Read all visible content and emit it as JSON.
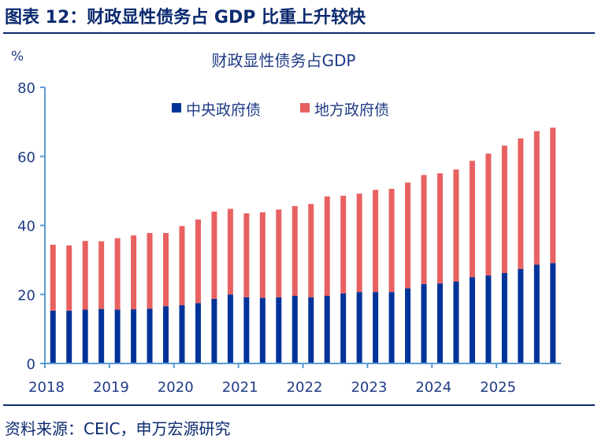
{
  "header": {
    "figure_title": "图表 12：财政显性债务占 GDP 比重上升较快"
  },
  "footer": {
    "source": "资料来源：CEIC，申万宏源研究"
  },
  "chart_data": {
    "type": "bar",
    "stacked": true,
    "title": "财政显性债务占GDP",
    "ylabel": "%",
    "xlabel": "",
    "ylim": [
      0,
      80
    ],
    "yticks": [
      0,
      20,
      40,
      60,
      80
    ],
    "xtick_labels": [
      "2018",
      "2019",
      "2020",
      "2021",
      "2022",
      "2023",
      "2024",
      "2025"
    ],
    "legend_position": "top",
    "grid": false,
    "categories": [
      "2018Q1",
      "2018Q2",
      "2018Q3",
      "2018Q4",
      "2019Q1",
      "2019Q2",
      "2019Q3",
      "2019Q4",
      "2020Q1",
      "2020Q2",
      "2020Q3",
      "2020Q4",
      "2021Q1",
      "2021Q2",
      "2021Q3",
      "2021Q4",
      "2022Q1",
      "2022Q2",
      "2022Q3",
      "2022Q4",
      "2023Q1",
      "2023Q2",
      "2023Q3",
      "2023Q4",
      "2024Q1",
      "2024Q2",
      "2024Q3",
      "2024Q4",
      "2025Q1",
      "2025Q2",
      "2025Q3",
      "2025Q4"
    ],
    "series": [
      {
        "name": "中央政府债",
        "color": "#003399",
        "values": [
          15.3,
          15.3,
          15.6,
          15.8,
          15.6,
          15.7,
          15.9,
          16.6,
          16.9,
          17.5,
          18.7,
          20.0,
          19.2,
          19.0,
          19.2,
          19.6,
          19.2,
          19.6,
          20.3,
          20.7,
          20.7,
          20.7,
          21.8,
          23.0,
          23.2,
          23.7,
          25.0,
          25.5,
          26.2,
          27.4,
          28.6,
          29.1
        ]
      },
      {
        "name": "地方政府债",
        "color": "#e86161",
        "values": [
          19.1,
          18.9,
          19.9,
          19.6,
          20.7,
          21.4,
          21.9,
          21.2,
          22.9,
          24.2,
          25.3,
          24.8,
          24.3,
          24.8,
          25.4,
          26.0,
          27.0,
          28.8,
          28.3,
          28.5,
          29.6,
          29.9,
          30.6,
          31.6,
          31.9,
          32.5,
          33.7,
          35.3,
          36.9,
          37.8,
          38.7,
          39.2
        ]
      }
    ]
  },
  "colors": {
    "axis": "#5b9bd5",
    "title_text": "#0b2a6f"
  }
}
